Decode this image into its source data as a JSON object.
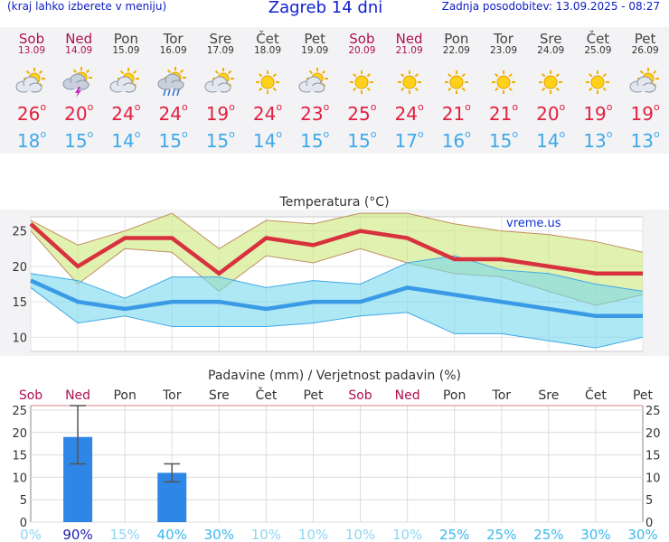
{
  "header": {
    "left_note": "(kraj lahko izberete v meniju)",
    "title": "Zagreb 14 dni",
    "updated": "Zadnja posodobitev: 13.09.2025 - 08:27"
  },
  "colors": {
    "weekend": "#b01050",
    "hi": "#e02040",
    "lo": "#40a8e8",
    "title": "#1020d0"
  },
  "days": [
    {
      "name": "Sob",
      "date": "13.09",
      "weekend": true,
      "icon": "partly-cloudy-icon",
      "hi": "26",
      "lo": "18"
    },
    {
      "name": "Ned",
      "date": "14.09",
      "weekend": true,
      "icon": "thunderstorm-icon",
      "hi": "20",
      "lo": "15"
    },
    {
      "name": "Pon",
      "date": "15.09",
      "weekend": false,
      "icon": "partly-cloudy-icon",
      "hi": "24",
      "lo": "14"
    },
    {
      "name": "Tor",
      "date": "16.09",
      "weekend": false,
      "icon": "rain-icon",
      "hi": "24",
      "lo": "15"
    },
    {
      "name": "Sre",
      "date": "17.09",
      "weekend": false,
      "icon": "partly-cloudy-icon",
      "hi": "19",
      "lo": "15"
    },
    {
      "name": "Čet",
      "date": "18.09",
      "weekend": false,
      "icon": "sun-icon",
      "hi": "24",
      "lo": "14"
    },
    {
      "name": "Pet",
      "date": "19.09",
      "weekend": false,
      "icon": "partly-cloudy-icon",
      "hi": "23",
      "lo": "15"
    },
    {
      "name": "Sob",
      "date": "20.09",
      "weekend": true,
      "icon": "sun-icon",
      "hi": "25",
      "lo": "15"
    },
    {
      "name": "Ned",
      "date": "21.09",
      "weekend": true,
      "icon": "sun-icon",
      "hi": "24",
      "lo": "17"
    },
    {
      "name": "Pon",
      "date": "22.09",
      "weekend": false,
      "icon": "sun-icon",
      "hi": "21",
      "lo": "16"
    },
    {
      "name": "Tor",
      "date": "23.09",
      "weekend": false,
      "icon": "sun-icon",
      "hi": "21",
      "lo": "15"
    },
    {
      "name": "Sre",
      "date": "24.09",
      "weekend": false,
      "icon": "sun-icon",
      "hi": "20",
      "lo": "14"
    },
    {
      "name": "Čet",
      "date": "25.09",
      "weekend": false,
      "icon": "sun-icon",
      "hi": "19",
      "lo": "13"
    },
    {
      "name": "Pet",
      "date": "26.09",
      "weekend": false,
      "icon": "partly-cloudy-icon",
      "hi": "19",
      "lo": "13"
    }
  ],
  "chart_data": [
    {
      "type": "line",
      "title": "Temperatura (°C)",
      "watermark": "vreme.us",
      "ylim": [
        8,
        27
      ],
      "yticks": [
        10,
        15,
        20,
        25
      ],
      "grid": true,
      "series": [
        {
          "name": "max",
          "values": [
            26,
            20,
            24,
            24,
            19,
            24,
            23,
            25,
            24,
            21,
            21,
            20,
            19,
            19
          ]
        },
        {
          "name": "min",
          "values": [
            18,
            15,
            14,
            15,
            15,
            14,
            15,
            15,
            17,
            16,
            15,
            14,
            13,
            13
          ]
        }
      ],
      "max_band_high": [
        26.5,
        23,
        25,
        27.5,
        22.5,
        26.5,
        26,
        27.5,
        27.5,
        26,
        25,
        24.5,
        23.5,
        22
      ],
      "max_band_low": [
        25,
        17.5,
        22.5,
        22,
        16.5,
        21.5,
        20.5,
        22.5,
        20.5,
        19,
        18.5,
        16.5,
        14.5,
        16
      ],
      "min_band_high": [
        19,
        18,
        15.5,
        18.5,
        18.5,
        17,
        18,
        17.5,
        20.5,
        21.5,
        19.5,
        19,
        17.5,
        16.5
      ],
      "min_band_low": [
        17,
        12,
        13,
        11.5,
        11.5,
        11.5,
        12,
        13,
        13.5,
        10.5,
        10.5,
        9.5,
        8.5,
        10
      ]
    },
    {
      "type": "bar",
      "title": "Padavine (mm) / Verjetnost padavin (%)",
      "categories": [
        "Sob",
        "Ned",
        "Pon",
        "Tor",
        "Sre",
        "Čet",
        "Pet",
        "Sob",
        "Ned",
        "Pon",
        "Tor",
        "Sre",
        "Čet",
        "Pet"
      ],
      "weekend": [
        true,
        true,
        false,
        false,
        false,
        false,
        false,
        true,
        true,
        false,
        false,
        false,
        false,
        false
      ],
      "values": [
        0,
        19,
        0,
        11,
        0,
        0,
        0,
        0,
        0,
        0,
        0,
        0,
        0,
        0
      ],
      "error_high": [
        0,
        26,
        0,
        13,
        0,
        0,
        0,
        0,
        0,
        0,
        0,
        0,
        0,
        0
      ],
      "error_low": [
        0,
        13,
        0,
        9,
        0,
        0,
        0,
        0,
        0,
        0,
        0,
        0,
        0,
        0
      ],
      "ylim": [
        0,
        26
      ],
      "yticks": [
        0,
        5,
        10,
        15,
        20,
        25
      ],
      "probability": [
        "0%",
        "90%",
        "15%",
        "40%",
        "30%",
        "10%",
        "10%",
        "10%",
        "10%",
        "25%",
        "25%",
        "25%",
        "30%",
        "30%"
      ]
    }
  ]
}
